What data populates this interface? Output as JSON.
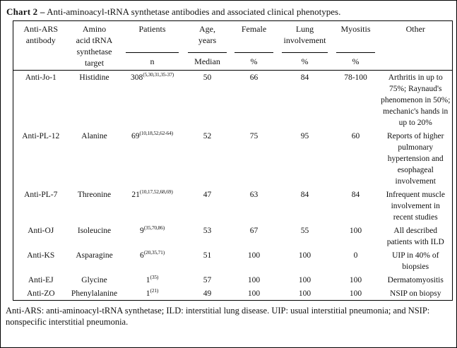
{
  "title": {
    "label": "Chart 2 –",
    "text": "Anti-aminoacyl-tRNA synthetase antibodies and associated clinical phenotypes."
  },
  "table": {
    "columns": [
      {
        "id": "antibody",
        "header": "Anti-ARS\nantibody"
      },
      {
        "id": "target",
        "header": "Amino\nacid tRNA\nsynthetase\ntarget"
      },
      {
        "id": "patients",
        "header": "Patients",
        "subheader": "n"
      },
      {
        "id": "age",
        "header": "Age,\nyears",
        "subheader": "Median"
      },
      {
        "id": "female",
        "header": "Female",
        "subheader": "%"
      },
      {
        "id": "lung",
        "header": "Lung\ninvolvement",
        "subheader": "%"
      },
      {
        "id": "myositis",
        "header": "Myositis",
        "subheader": "%"
      },
      {
        "id": "other",
        "header": "Other"
      }
    ],
    "rows": [
      {
        "antibody": "Anti-Jo-1",
        "target": "Histidine",
        "patients_n": "308",
        "patients_refs": "(5,30,31,35-37)",
        "age": "50",
        "female": "66",
        "lung": "84",
        "myositis": "78-100",
        "other": "Arthritis in up to 75%; Raynaud's phenomenon in 50%; mechanic's hands in up to 20%"
      },
      {
        "antibody": "Anti-PL-12",
        "target": "Alanine",
        "patients_n": "69",
        "patients_refs": "(10,18,52,62-64)",
        "age": "52",
        "female": "75",
        "lung": "95",
        "myositis": "60",
        "other": "Reports of higher pulmonary hypertension and esophageal involvement"
      },
      {
        "antibody": "Anti-PL-7",
        "target": "Threonine",
        "patients_n": "21",
        "patients_refs": "(10,17,52,68,69)",
        "age": "47",
        "female": "63",
        "lung": "84",
        "myositis": "84",
        "other": "Infrequent muscle involvement in recent studies"
      },
      {
        "antibody": "Anti-OJ",
        "target": "Isoleucine",
        "patients_n": "9",
        "patients_refs": "(35,70,86)",
        "age": "53",
        "female": "67",
        "lung": "55",
        "myositis": "100",
        "other": "All described patients with ILD"
      },
      {
        "antibody": "Anti-KS",
        "target": "Asparagine",
        "patients_n": "6",
        "patients_refs": "(20,35,71)",
        "age": "51",
        "female": "100",
        "lung": "100",
        "myositis": "0",
        "other": "UIP in 40% of biopsies"
      },
      {
        "antibody": "Anti-EJ",
        "target": "Glycine",
        "patients_n": "1",
        "patients_refs": "(35)",
        "age": "57",
        "female": "100",
        "lung": "100",
        "myositis": "100",
        "other": "Dermatomyositis"
      },
      {
        "antibody": "Anti-ZO",
        "target": "Phenylalanine",
        "patients_n": "1",
        "patients_refs": "(21)",
        "age": "49",
        "female": "100",
        "lung": "100",
        "myositis": "100",
        "other": "NSIP on biopsy"
      }
    ]
  },
  "footnote": {
    "text": "Anti-ARS: anti-aminoacyl-tRNA synthetase; ILD: interstitial lung disease. UIP: usual interstitial pneumonia; and NSIP: nonspecific interstitial pneumonia."
  },
  "colors": {
    "text": "#111111",
    "border": "#000000",
    "background": "#ffffff"
  }
}
